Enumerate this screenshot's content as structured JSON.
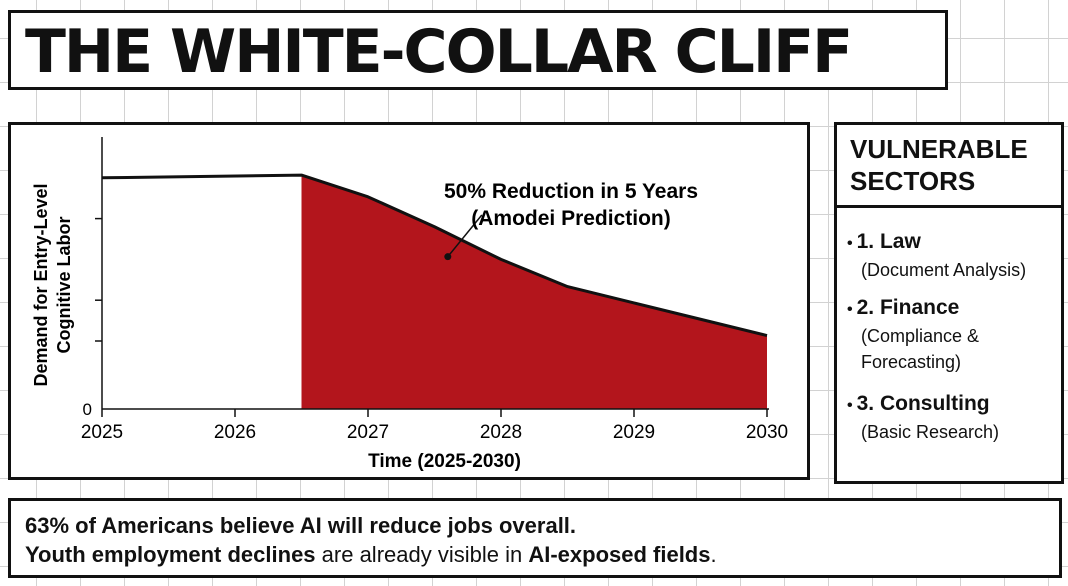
{
  "title": "THE WHITE-COLLAR CLIFF",
  "chart_data": {
    "type": "area",
    "title": "",
    "xlabel": "Time (2025-2030)",
    "ylabel_lines": [
      "Demand for Entry-Level",
      "Cognitive Labor"
    ],
    "x_ticks": [
      "2025",
      "2026",
      "2027",
      "2028",
      "2029",
      "2030"
    ],
    "x_tick_values": [
      2025,
      2026,
      2027,
      2028,
      2029,
      2030
    ],
    "y_tick_labels": [
      "0"
    ],
    "xlim": [
      2025,
      2030
    ],
    "ylim": [
      0,
      100
    ],
    "series": [
      {
        "points": [
          [
            2025,
            85
          ],
          [
            2026.5,
            86
          ],
          [
            2027,
            78
          ],
          [
            2027.5,
            67
          ],
          [
            2028,
            55
          ],
          [
            2028.5,
            45
          ],
          [
            2029,
            39
          ],
          [
            2029.5,
            33
          ],
          [
            2030,
            27
          ]
        ]
      }
    ],
    "shaded_from_x": 2026.5,
    "annotation": {
      "lines": [
        "50% Reduction in 5 Years",
        "(Amodei Prediction)"
      ],
      "point": [
        2027.6,
        56
      ]
    },
    "colors": {
      "fill": "#b3151c",
      "line": "#111111"
    }
  },
  "sectors": {
    "title_lines": [
      "VULNERABLE",
      "SECTORS"
    ],
    "items": [
      {
        "name": "1. Law",
        "detail_lines": [
          "(Document Analysis)"
        ]
      },
      {
        "name": "2. Finance",
        "detail_lines": [
          "(Compliance &",
          "Forecasting)"
        ]
      },
      {
        "name": "3. Consulting",
        "detail_lines": [
          "(Basic Research)"
        ]
      }
    ]
  },
  "footer": {
    "line1": "63% of Americans believe AI will reduce jobs overall.",
    "line2_bold1": "Youth employment declines",
    "line2_mid": " are already visible in ",
    "line2_bold2": "AI-exposed fields",
    "line2_end": "."
  }
}
